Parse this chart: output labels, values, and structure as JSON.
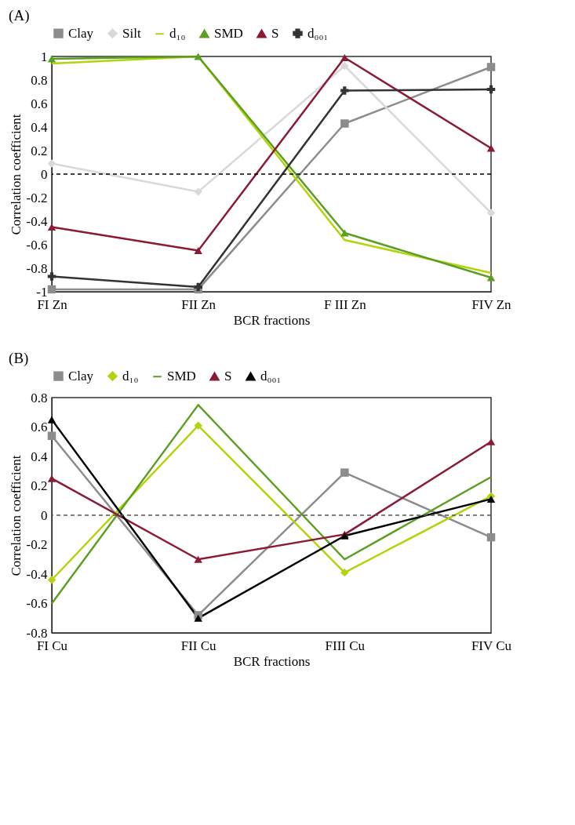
{
  "chart_data": [
    {
      "type": "line",
      "title": "(A)",
      "xlabel": "BCR fractions",
      "ylabel": "Correlation coefficient",
      "categories": [
        "FI Zn",
        "FII Zn",
        "F III Zn",
        "FIV Zn"
      ],
      "ylim": [
        -1,
        1
      ],
      "yticks": [
        -1,
        -0.8,
        -0.6,
        -0.4,
        -0.2,
        0,
        0.2,
        0.4,
        0.6,
        0.8,
        1
      ],
      "grid": false,
      "legend": "top",
      "ref_lines": [
        {
          "axis": "y",
          "value": 0,
          "color": "#000000",
          "line_style": "dashed"
        }
      ],
      "series": [
        {
          "name": "Clay",
          "color": "#8c8c8c",
          "marker": "square",
          "values": [
            -0.98,
            -0.98,
            0.43,
            0.91
          ]
        },
        {
          "name": "Silt",
          "color": "#d9d9d9",
          "marker": "diamond",
          "values": [
            0.09,
            -0.15,
            0.92,
            -0.33
          ]
        },
        {
          "name": "d₁₀",
          "color": "#b4d30c",
          "marker": "none",
          "values": [
            0.94,
            1.0,
            -0.56,
            -0.84
          ]
        },
        {
          "name": "SMD",
          "color": "#5a9e22",
          "marker": "triangle",
          "values": [
            0.98,
            1.0,
            -0.5,
            -0.88
          ]
        },
        {
          "name": "S",
          "color": "#8b1a34",
          "marker": "triangle",
          "values": [
            -0.45,
            -0.65,
            0.99,
            0.22
          ]
        },
        {
          "name": "d₀₀₁",
          "color": "#333333",
          "marker": "cross",
          "values": [
            -0.87,
            -0.96,
            0.71,
            0.72
          ]
        }
      ]
    },
    {
      "type": "line",
      "title": "(B)",
      "xlabel": "BCR fractions",
      "ylabel": "Correlation coefficient",
      "categories": [
        "FI Cu",
        "FII Cu",
        "FIII Cu",
        "FIV Cu"
      ],
      "ylim": [
        -0.8,
        0.8
      ],
      "yticks": [
        -0.8,
        -0.6,
        -0.4,
        -0.2,
        0,
        0.2,
        0.4,
        0.6,
        0.8
      ],
      "grid": false,
      "legend": "top",
      "ref_lines": [
        {
          "axis": "y",
          "value": 0,
          "color": "#555555",
          "line_style": "dashed"
        }
      ],
      "series": [
        {
          "name": "Clay",
          "color": "#8c8c8c",
          "marker": "square",
          "values": [
            0.54,
            -0.68,
            0.29,
            -0.15
          ]
        },
        {
          "name": "d₁₀",
          "color": "#b4d30c",
          "marker": "diamond",
          "values": [
            -0.44,
            0.61,
            -0.39,
            0.13
          ]
        },
        {
          "name": "SMD",
          "color": "#5a9e22",
          "marker": "none",
          "values": [
            -0.6,
            0.75,
            -0.3,
            0.26
          ]
        },
        {
          "name": "S",
          "color": "#8b1a34",
          "marker": "triangle",
          "values": [
            0.25,
            -0.3,
            -0.13,
            0.5
          ]
        },
        {
          "name": "d₀₀₁",
          "color": "#000000",
          "marker": "triangle",
          "values": [
            0.65,
            -0.7,
            -0.14,
            0.11
          ]
        }
      ]
    }
  ]
}
